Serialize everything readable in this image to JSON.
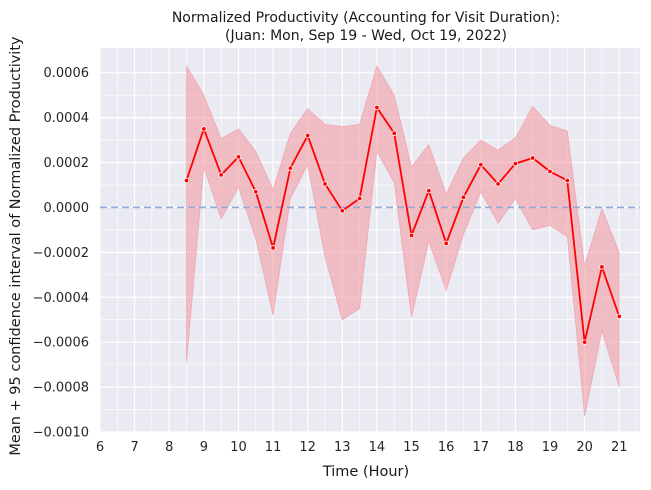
{
  "chart_data": {
    "type": "line",
    "title_line1": "Normalized Productivity (Accounting for Visit Duration):",
    "title_line2": "(Juan: Mon, Sep 19 - Wed, Oct 19, 2022)",
    "xlabel": "Time (Hour)",
    "ylabel": "Mean + 95 confidence interval of Normalized Productivity",
    "xlim": [
      6,
      21.6
    ],
    "ylim": [
      -0.001,
      0.00071
    ],
    "x_ticks": [
      6,
      7,
      8,
      9,
      10,
      11,
      12,
      13,
      14,
      15,
      16,
      17,
      18,
      19,
      20,
      21
    ],
    "x_tick_labels": [
      "6",
      "7",
      "8",
      "9",
      "10",
      "11",
      "12",
      "13",
      "14",
      "15",
      "16",
      "17",
      "18",
      "19",
      "20",
      "21"
    ],
    "y_ticks": [
      -0.001,
      -0.0008,
      -0.0006,
      -0.0004,
      -0.0002,
      0,
      0.0002,
      0.0004,
      0.0006
    ],
    "y_tick_labels": [
      "−0.0010",
      "−0.0008",
      "−0.0006",
      "−0.0004",
      "−0.0002",
      "0.0000",
      "0.0002",
      "0.0004",
      "0.0006"
    ],
    "grid": true,
    "reference_line_y": 0,
    "x": [
      8.5,
      9,
      9.5,
      10,
      10.5,
      11,
      11.5,
      12,
      12.5,
      13,
      13.5,
      14,
      14.5,
      15,
      15.5,
      16,
      16.5,
      17,
      17.5,
      18,
      18.5,
      19,
      19.5,
      20,
      20.5,
      21
    ],
    "mean": [
      0.00012,
      0.00035,
      0.000145,
      0.000225,
      7e-05,
      -0.00018,
      0.000175,
      0.00032,
      0.000105,
      -1.5e-05,
      4e-05,
      0.000445,
      0.00033,
      -0.000125,
      7.5e-05,
      -0.00016,
      4.5e-05,
      0.00019,
      0.000105,
      0.000195,
      0.00022,
      0.00016,
      0.00012,
      -0.0006,
      -0.000265,
      -0.000485
    ],
    "ci_upper": [
      0.00063,
      0.0005,
      0.000305,
      0.00035,
      0.00025,
      8e-05,
      0.00033,
      0.00044,
      0.00037,
      0.00036,
      0.00037,
      0.00063,
      0.0005,
      0.00018,
      0.00028,
      6e-05,
      0.00022,
      0.0003,
      0.000255,
      0.00031,
      0.00045,
      0.000365,
      0.00034,
      -0.00026,
      -5e-06,
      -0.0002
    ],
    "ci_lower": [
      -0.00069,
      0.00018,
      -5e-05,
      9e-05,
      -0.00014,
      -0.00048,
      4e-05,
      0.00019,
      -0.00022,
      -0.0005,
      -0.00045,
      0.00025,
      0.00011,
      -0.00049,
      -0.00015,
      -0.00037,
      -0.00012,
      7e-05,
      -7e-05,
      4e-05,
      -0.0001,
      -8e-05,
      -0.00013,
      -0.00093,
      -0.00055,
      -0.0008
    ],
    "colors": {
      "background": "#eaeaf2",
      "grid": "#ffffff",
      "line": "#ff0000",
      "band": "#f4a0a8",
      "band_edge": "#f08090",
      "reference": "#8fa9d8"
    }
  }
}
